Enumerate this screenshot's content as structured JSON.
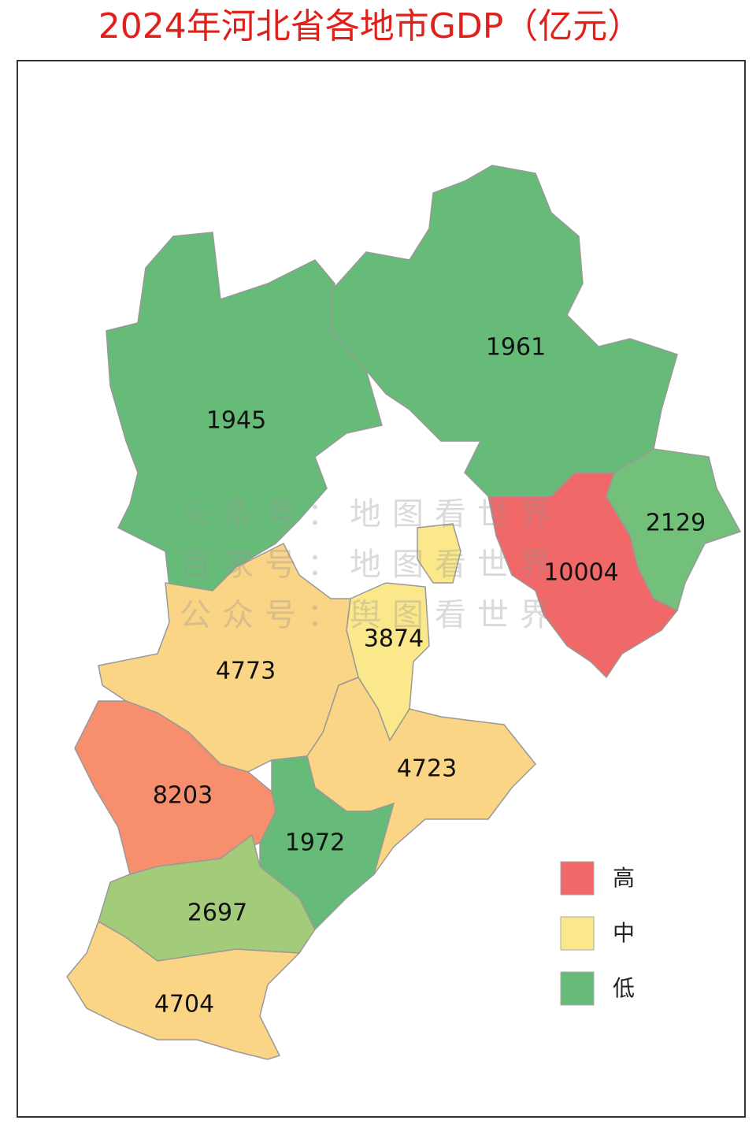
{
  "title": "2024年河北省各地市GDP（亿元）",
  "regions": [
    {
      "value": 1945,
      "color": "#66bb78"
    },
    {
      "value": 1961,
      "color": "#66bb78"
    },
    {
      "value": 10004,
      "color": "#f06868"
    },
    {
      "value": 2129,
      "color": "#72c07a"
    },
    {
      "value": 3874,
      "color": "#fbe88a"
    },
    {
      "value": 4773,
      "color": "#fad585"
    },
    {
      "value": 4723,
      "color": "#fad585"
    },
    {
      "value": 8203,
      "color": "#f78f6e"
    },
    {
      "value": 1972,
      "color": "#66bb78"
    },
    {
      "value": 2697,
      "color": "#a3cc7a"
    },
    {
      "value": 4704,
      "color": "#fad585"
    }
  ],
  "legend": [
    {
      "label": "高",
      "color": "#f06868"
    },
    {
      "label": "中",
      "color": "#fbe88a"
    },
    {
      "label": "低",
      "color": "#66bb78"
    }
  ],
  "watermark": [
    "头条号：地图看世界",
    "百家号：地图看世界",
    "公众号：舆图看世界"
  ]
}
